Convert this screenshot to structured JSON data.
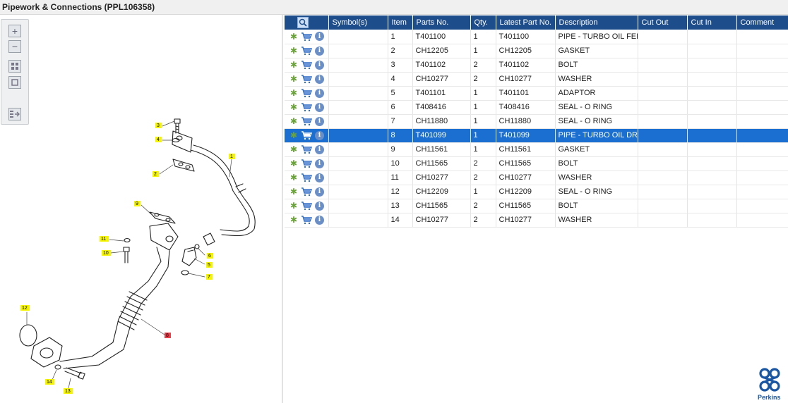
{
  "title": "Pipework & Connections (PPL106358)",
  "toolbar": {
    "zoom_in": "zoom-in-icon",
    "zoom_out": "zoom-out-icon",
    "fit_all": "fit-all-icon",
    "fit_page": "fit-page-icon",
    "list_view": "list-view-icon"
  },
  "diagram": {
    "callouts": [
      "1",
      "2",
      "3",
      "4",
      "5",
      "6",
      "7",
      "8",
      "9",
      "10",
      "11",
      "12",
      "13",
      "14"
    ]
  },
  "grid": {
    "headers": [
      "",
      "Symbol(s)",
      "Item",
      "Parts No.",
      "Qty.",
      "Latest Part No.",
      "Description",
      "Cut Out",
      "Cut In",
      "Comment"
    ],
    "rows": [
      {
        "item": "1",
        "part": "T401100",
        "qty": "1",
        "latest": "T401100",
        "desc": "PIPE - TURBO OIL FEED"
      },
      {
        "item": "2",
        "part": "CH12205",
        "qty": "1",
        "latest": "CH12205",
        "desc": "GASKET"
      },
      {
        "item": "3",
        "part": "T401102",
        "qty": "2",
        "latest": "T401102",
        "desc": "BOLT"
      },
      {
        "item": "4",
        "part": "CH10277",
        "qty": "2",
        "latest": "CH10277",
        "desc": "WASHER"
      },
      {
        "item": "5",
        "part": "T401101",
        "qty": "1",
        "latest": "T401101",
        "desc": "ADAPTOR"
      },
      {
        "item": "6",
        "part": "T408416",
        "qty": "1",
        "latest": "T408416",
        "desc": "SEAL - O RING"
      },
      {
        "item": "7",
        "part": "CH11880",
        "qty": "1",
        "latest": "CH11880",
        "desc": "SEAL - O RING"
      },
      {
        "item": "8",
        "part": "T401099",
        "qty": "1",
        "latest": "T401099",
        "desc": "PIPE - TURBO OIL DRA",
        "selected": true
      },
      {
        "item": "9",
        "part": "CH11561",
        "qty": "1",
        "latest": "CH11561",
        "desc": "GASKET"
      },
      {
        "item": "10",
        "part": "CH11565",
        "qty": "2",
        "latest": "CH11565",
        "desc": "BOLT"
      },
      {
        "item": "11",
        "part": "CH10277",
        "qty": "2",
        "latest": "CH10277",
        "desc": "WASHER"
      },
      {
        "item": "12",
        "part": "CH12209",
        "qty": "1",
        "latest": "CH12209",
        "desc": "SEAL - O RING"
      },
      {
        "item": "13",
        "part": "CH11565",
        "qty": "2",
        "latest": "CH11565",
        "desc": "BOLT"
      },
      {
        "item": "14",
        "part": "CH10277",
        "qty": "2",
        "latest": "CH10277",
        "desc": "WASHER"
      }
    ]
  },
  "row_icons": [
    "gear-icon",
    "cart-icon",
    "info-icon"
  ],
  "colors": {
    "header_bg": "#1e4d8c",
    "selected_row": "#1b6fd1",
    "callout": "#f5f500",
    "selected_callout": "#e8404a"
  },
  "brand": "Perkins"
}
